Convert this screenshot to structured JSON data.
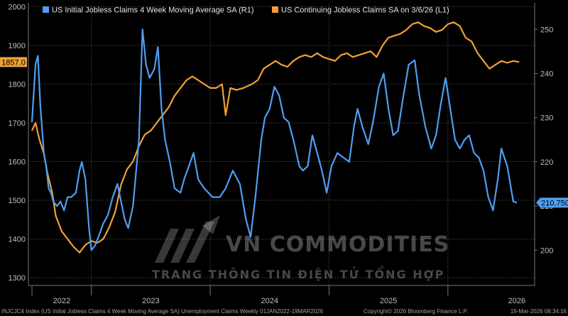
{
  "chart_data": {
    "type": "line",
    "title": "",
    "xlabel": "",
    "ylabel": "",
    "x_ticks": [
      "2022",
      "2023",
      "2024",
      "2025",
      "2026"
    ],
    "left_axis": {
      "min": 1280,
      "max": 2010,
      "ticks": [
        1300,
        1400,
        1500,
        1600,
        1700,
        1800,
        1900,
        2000
      ]
    },
    "right_axis": {
      "min": 192,
      "max": 256,
      "ticks": [
        200,
        210,
        220,
        230,
        240,
        250
      ]
    },
    "x_range": [
      2021.97,
      2026.23
    ],
    "grid": true,
    "legend": "top-left",
    "series": [
      {
        "name": "US Initial Jobless Claims 4 Week Moving Average SA  (R1)",
        "axis": "right",
        "color": "#4f9ef0",
        "last_label": "210.750",
        "points": [
          [
            2022.0,
            229
          ],
          [
            2022.03,
            242
          ],
          [
            2022.05,
            244
          ],
          [
            2022.07,
            233
          ],
          [
            2022.1,
            222
          ],
          [
            2022.12,
            219
          ],
          [
            2022.14,
            214
          ],
          [
            2022.16,
            213
          ],
          [
            2022.18,
            211
          ],
          [
            2022.21,
            210
          ],
          [
            2022.24,
            211
          ],
          [
            2022.27,
            209
          ],
          [
            2022.3,
            212
          ],
          [
            2022.33,
            212
          ],
          [
            2022.37,
            213
          ],
          [
            2022.4,
            218
          ],
          [
            2022.42,
            220
          ],
          [
            2022.45,
            216
          ],
          [
            2022.48,
            205
          ],
          [
            2022.5,
            200
          ],
          [
            2022.53,
            201
          ],
          [
            2022.56,
            203
          ],
          [
            2022.6,
            206
          ],
          [
            2022.64,
            208
          ],
          [
            2022.68,
            212
          ],
          [
            2022.72,
            215
          ],
          [
            2022.75,
            211
          ],
          [
            2022.78,
            207
          ],
          [
            2022.81,
            205
          ],
          [
            2022.85,
            210
          ],
          [
            2022.9,
            225
          ],
          [
            2022.93,
            250
          ],
          [
            2022.96,
            242
          ],
          [
            2022.99,
            239
          ],
          [
            2023.03,
            241
          ],
          [
            2023.06,
            246
          ],
          [
            2023.09,
            232
          ],
          [
            2023.12,
            225
          ],
          [
            2023.16,
            220
          ],
          [
            2023.2,
            214
          ],
          [
            2023.25,
            213
          ],
          [
            2023.28,
            216
          ],
          [
            2023.32,
            219
          ],
          [
            2023.36,
            222
          ],
          [
            2023.4,
            216
          ],
          [
            2023.45,
            214
          ],
          [
            2023.52,
            212
          ],
          [
            2023.58,
            212
          ],
          [
            2023.63,
            214
          ],
          [
            2023.69,
            218
          ],
          [
            2023.75,
            215
          ],
          [
            2023.8,
            207
          ],
          [
            2023.84,
            203
          ],
          [
            2023.88,
            212
          ],
          [
            2023.93,
            225
          ],
          [
            2023.96,
            230
          ],
          [
            2024.0,
            232
          ],
          [
            2024.04,
            237
          ],
          [
            2024.08,
            235
          ],
          [
            2024.12,
            230
          ],
          [
            2024.16,
            229
          ],
          [
            2024.2,
            225
          ],
          [
            2024.25,
            219
          ],
          [
            2024.28,
            218
          ],
          [
            2024.32,
            219
          ],
          [
            2024.36,
            226
          ],
          [
            2024.4,
            222
          ],
          [
            2024.44,
            218
          ],
          [
            2024.48,
            213
          ],
          [
            2024.52,
            219
          ],
          [
            2024.57,
            222
          ],
          [
            2024.62,
            221
          ],
          [
            2024.67,
            220
          ],
          [
            2024.71,
            228
          ],
          [
            2024.74,
            232
          ],
          [
            2024.78,
            228
          ],
          [
            2024.83,
            224
          ],
          [
            2024.87,
            229
          ],
          [
            2024.92,
            237
          ],
          [
            2024.96,
            240
          ],
          [
            2025.0,
            232
          ],
          [
            2025.04,
            226
          ],
          [
            2025.08,
            227
          ],
          [
            2025.12,
            234
          ],
          [
            2025.17,
            242
          ],
          [
            2025.22,
            243
          ],
          [
            2025.26,
            235
          ],
          [
            2025.31,
            228
          ],
          [
            2025.36,
            223
          ],
          [
            2025.4,
            226
          ],
          [
            2025.44,
            233
          ],
          [
            2025.48,
            239
          ],
          [
            2025.52,
            232
          ],
          [
            2025.56,
            225
          ],
          [
            2025.6,
            223
          ],
          [
            2025.64,
            225
          ],
          [
            2025.68,
            226
          ],
          [
            2025.72,
            222
          ],
          [
            2025.76,
            221
          ],
          [
            2025.8,
            218
          ],
          [
            2025.84,
            212
          ],
          [
            2025.88,
            209
          ],
          [
            2025.92,
            216
          ],
          [
            2025.95,
            223
          ],
          [
            2026.0,
            219
          ],
          [
            2026.05,
            211
          ],
          [
            2026.08,
            210.75
          ]
        ]
      },
      {
        "name": "US Continuing Jobless Claims SA  on 3/6/26  (L1)",
        "axis": "left",
        "color": "#f0a035",
        "last_label": "1857.0",
        "points": [
          [
            2022.0,
            1680
          ],
          [
            2022.03,
            1700
          ],
          [
            2022.06,
            1660
          ],
          [
            2022.1,
            1620
          ],
          [
            2022.13,
            1570
          ],
          [
            2022.17,
            1520
          ],
          [
            2022.2,
            1460
          ],
          [
            2022.25,
            1420
          ],
          [
            2022.3,
            1400
          ],
          [
            2022.35,
            1380
          ],
          [
            2022.4,
            1365
          ],
          [
            2022.45,
            1385
          ],
          [
            2022.5,
            1395
          ],
          [
            2022.55,
            1390
          ],
          [
            2022.6,
            1400
          ],
          [
            2022.65,
            1430
          ],
          [
            2022.7,
            1470
          ],
          [
            2022.75,
            1540
          ],
          [
            2022.8,
            1580
          ],
          [
            2022.85,
            1600
          ],
          [
            2022.9,
            1640
          ],
          [
            2022.95,
            1670
          ],
          [
            2023.0,
            1680
          ],
          [
            2023.05,
            1700
          ],
          [
            2023.1,
            1720
          ],
          [
            2023.15,
            1740
          ],
          [
            2023.2,
            1770
          ],
          [
            2023.25,
            1790
          ],
          [
            2023.3,
            1810
          ],
          [
            2023.35,
            1820
          ],
          [
            2023.4,
            1810
          ],
          [
            2023.45,
            1800
          ],
          [
            2023.5,
            1790
          ],
          [
            2023.55,
            1790
          ],
          [
            2023.6,
            1800
          ],
          [
            2023.63,
            1720
          ],
          [
            2023.67,
            1790
          ],
          [
            2023.72,
            1785
          ],
          [
            2023.78,
            1790
          ],
          [
            2023.85,
            1800
          ],
          [
            2023.9,
            1810
          ],
          [
            2023.95,
            1840
          ],
          [
            2024.0,
            1850
          ],
          [
            2024.05,
            1860
          ],
          [
            2024.1,
            1850
          ],
          [
            2024.15,
            1845
          ],
          [
            2024.2,
            1860
          ],
          [
            2024.25,
            1870
          ],
          [
            2024.3,
            1875
          ],
          [
            2024.35,
            1870
          ],
          [
            2024.4,
            1880
          ],
          [
            2024.45,
            1870
          ],
          [
            2024.5,
            1865
          ],
          [
            2024.55,
            1860
          ],
          [
            2024.6,
            1875
          ],
          [
            2024.65,
            1880
          ],
          [
            2024.7,
            1870
          ],
          [
            2024.75,
            1875
          ],
          [
            2024.8,
            1880
          ],
          [
            2024.85,
            1885
          ],
          [
            2024.9,
            1870
          ],
          [
            2024.95,
            1900
          ],
          [
            2025.0,
            1920
          ],
          [
            2025.05,
            1925
          ],
          [
            2025.1,
            1930
          ],
          [
            2025.15,
            1940
          ],
          [
            2025.2,
            1955
          ],
          [
            2025.25,
            1960
          ],
          [
            2025.3,
            1950
          ],
          [
            2025.35,
            1945
          ],
          [
            2025.4,
            1935
          ],
          [
            2025.45,
            1940
          ],
          [
            2025.5,
            1955
          ],
          [
            2025.55,
            1960
          ],
          [
            2025.6,
            1950
          ],
          [
            2025.65,
            1920
          ],
          [
            2025.7,
            1910
          ],
          [
            2025.75,
            1880
          ],
          [
            2025.8,
            1860
          ],
          [
            2025.85,
            1840
          ],
          [
            2025.9,
            1850
          ],
          [
            2025.95,
            1860
          ],
          [
            2026.0,
            1855
          ],
          [
            2026.05,
            1860
          ],
          [
            2026.1,
            1857
          ]
        ]
      }
    ],
    "watermark": {
      "brand": "VN COMMODITIES",
      "tagline": "TRANG THÔNG TIN ĐIỆN TỬ TỔNG HỢP"
    },
    "footer": {
      "left": "INJCJC4 Index (US Initial Jobless Claims 4 Week Moving Average SA) Unemployment Claims Weekly 01JAN2022-19MAR2026",
      "center": "Copyright© 2026 Bloomberg Finance L.P.",
      "right": "19-Mar-2026 08:34:16"
    }
  }
}
